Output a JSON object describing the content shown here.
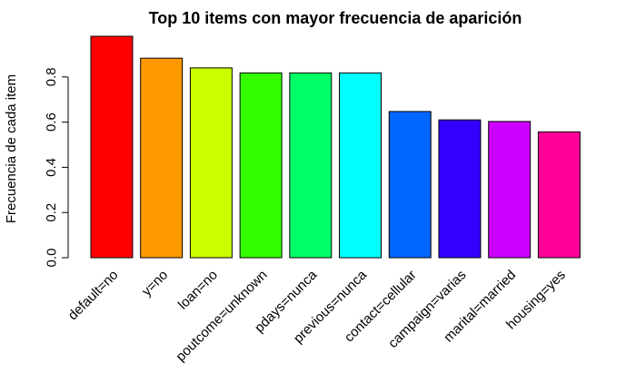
{
  "chart_data": {
    "type": "bar",
    "title": "Top 10 items con mayor frecuencia de aparición",
    "ylabel": "Frecuencia de cada item",
    "xlabel": "",
    "ylim": [
      0,
      0.98
    ],
    "yticks": [
      "0.0",
      "0.2",
      "0.4",
      "0.6",
      "0.8"
    ],
    "ytick_values": [
      0,
      0.2,
      0.4,
      0.6,
      0.8
    ],
    "categories": [
      "default=no",
      "y=no",
      "loan=no",
      "poutcome=unknown",
      "pdays=nunca",
      "previous=nunca",
      "contact=cellular",
      "campaign=varias",
      "marital=married",
      "housing=yes"
    ],
    "values": [
      0.98,
      0.883,
      0.84,
      0.818,
      0.818,
      0.818,
      0.647,
      0.61,
      0.603,
      0.557
    ],
    "colors": [
      "#FF0000",
      "#FF9900",
      "#CCFF00",
      "#33FF00",
      "#00FF66",
      "#00FFFF",
      "#0066FF",
      "#3300FF",
      "#CC00FF",
      "#FF0099"
    ],
    "grid": false,
    "legend": "none"
  }
}
